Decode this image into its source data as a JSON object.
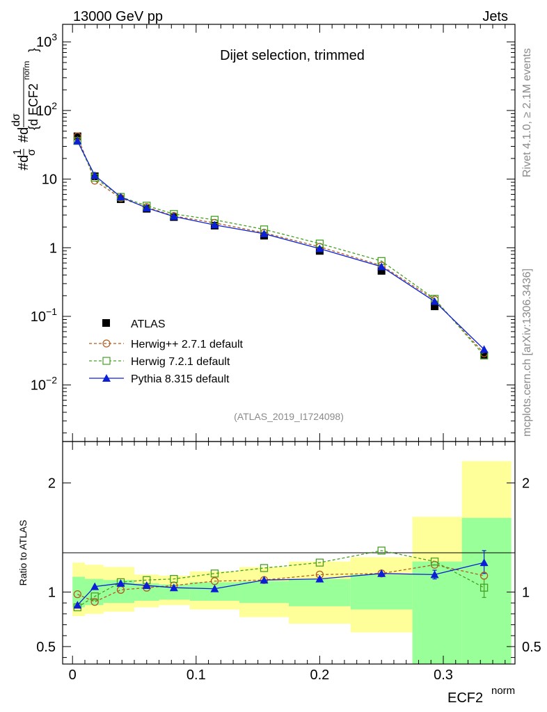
{
  "header": {
    "left": "13000 GeV pp",
    "right": "Jets"
  },
  "side": {
    "rivet": "Rivet 4.1.0, ≥ 2.1M events",
    "mcplots": "mcplots.cern.ch [arXiv:1306.3436]"
  },
  "main": {
    "title": "Dijet selection, trimmed",
    "analysis_id": "(ATLAS_2019_I1724098)",
    "ylabel_html": "1/σ dσ/d ECF2norm"
  },
  "ratio": {
    "ylabel": "Ratio to ATLAS"
  },
  "xaxis": {
    "label": "ECF2",
    "label_sup": "norm"
  },
  "legend": [
    {
      "key": "atlas",
      "label": "ATLAS"
    },
    {
      "key": "herwigpp",
      "label": "Herwig++ 2.7.1 default"
    },
    {
      "key": "herwig7",
      "label": "Herwig 7.2.1 default"
    },
    {
      "key": "pythia",
      "label": "Pythia 8.315 default"
    }
  ],
  "colors": {
    "herwigpp": "#b35a1f",
    "herwig7": "#44a021",
    "pythia": "#0b1fd6",
    "band_inner": "#99ff99",
    "band_outer": "#ffff99"
  },
  "chart_data": [
    {
      "type": "line",
      "yscale": "log",
      "xlim": [
        -0.008,
        0.358
      ],
      "ylim": [
        0.0015,
        1800
      ],
      "ytick_labels": [
        "10^-2",
        "10^-1",
        "1",
        "10",
        "10^2",
        "10^3"
      ],
      "bins": [
        [
          0,
          0.01
        ],
        [
          0.01,
          0.025
        ],
        [
          0.025,
          0.05
        ],
        [
          0.05,
          0.07
        ],
        [
          0.07,
          0.095
        ],
        [
          0.095,
          0.135
        ],
        [
          0.135,
          0.175
        ],
        [
          0.175,
          0.225
        ],
        [
          0.225,
          0.275
        ],
        [
          0.275,
          0.315
        ],
        [
          0.315,
          0.355
        ]
      ],
      "x": [
        0.004,
        0.018,
        0.039,
        0.06,
        0.082,
        0.115,
        0.155,
        0.2,
        0.25,
        0.293,
        0.333
      ],
      "series": [
        {
          "name": "ATLAS",
          "key": "atlas",
          "values": [
            42,
            11,
            5.1,
            3.7,
            2.8,
            2.1,
            1.5,
            0.9,
            0.46,
            0.14,
            0.027
          ]
        },
        {
          "name": "Herwig++ 2.7.1 default",
          "key": "herwigpp",
          "values": [
            42,
            9.5,
            5.3,
            3.9,
            2.9,
            2.3,
            1.65,
            1.03,
            0.55,
            0.175,
            0.029
          ]
        },
        {
          "name": "Herwig 7.2.1 default",
          "key": "herwig7",
          "values": [
            36,
            10.5,
            5.5,
            4.1,
            3.1,
            2.55,
            1.85,
            1.15,
            0.64,
            0.18,
            0.027
          ]
        },
        {
          "name": "Pythia 8.315 default",
          "key": "pythia",
          "values": [
            36,
            11.3,
            5.5,
            3.8,
            2.85,
            2.15,
            1.6,
            0.97,
            0.53,
            0.165,
            0.033
          ]
        }
      ]
    },
    {
      "type": "line",
      "ylabel": "Ratio to ATLAS",
      "ylim": [
        0.34,
        2.38
      ],
      "yticks": [
        0.5,
        1,
        2
      ],
      "ytick_labels": [
        "0.5",
        "1",
        "2"
      ],
      "xticks": [
        0,
        0.1,
        0.2,
        0.3
      ],
      "xtick_labels": [
        "0",
        "0.1",
        "0.2",
        "0.3"
      ],
      "bands": [
        {
          "inner": [
            0.86,
            1.14
          ],
          "outer": [
            0.78,
            1.27
          ]
        },
        {
          "inner": [
            0.88,
            1.12
          ],
          "outer": [
            0.8,
            1.25
          ]
        },
        {
          "inner": [
            0.9,
            1.11
          ],
          "outer": [
            0.82,
            1.23
          ]
        },
        {
          "inner": [
            0.92,
            1.08
          ],
          "outer": [
            0.86,
            1.16
          ]
        },
        {
          "inner": [
            0.93,
            1.07
          ],
          "outer": [
            0.88,
            1.15
          ]
        },
        {
          "inner": [
            0.92,
            1.09
          ],
          "outer": [
            0.84,
            1.19
          ]
        },
        {
          "inner": [
            0.9,
            1.1
          ],
          "outer": [
            0.77,
            1.23
          ]
        },
        {
          "inner": [
            0.87,
            1.12
          ],
          "outer": [
            0.71,
            1.28
          ]
        },
        {
          "inner": [
            0.84,
            1.16
          ],
          "outer": [
            0.63,
            1.32
          ]
        },
        {
          "inner": [
            0.34,
            1.28
          ],
          "outer": [
            0.34,
            1.69
          ]
        },
        {
          "inner": [
            0.34,
            1.68
          ],
          "outer": [
            0.34,
            2.2
          ]
        }
      ],
      "series": [
        {
          "name": "Herwig++ 2.7.1 default",
          "key": "herwigpp",
          "values": [
            0.98,
            0.91,
            1.02,
            1.04,
            1.06,
            1.1,
            1.11,
            1.16,
            1.17,
            1.25,
            1.15
          ]
        },
        {
          "name": "Herwig 7.2.1 default",
          "key": "herwig7",
          "values": [
            0.86,
            0.96,
            1.09,
            1.11,
            1.12,
            1.17,
            1.22,
            1.27,
            1.38,
            1.28,
            1.04
          ]
        },
        {
          "name": "Pythia 8.315 default",
          "key": "pythia",
          "values": [
            0.88,
            1.05,
            1.08,
            1.06,
            1.04,
            1.03,
            1.11,
            1.12,
            1.17,
            1.16,
            1.27
          ]
        }
      ],
      "error_bars": [
        {
          "key": "herwig7",
          "bin": 10,
          "low": 0.95,
          "high": 1.12
        },
        {
          "key": "pythia",
          "bin": 10,
          "low": 1.17,
          "high": 1.38
        },
        {
          "key": "pythia",
          "bin": 9,
          "low": 1.12,
          "high": 1.2
        }
      ]
    }
  ]
}
